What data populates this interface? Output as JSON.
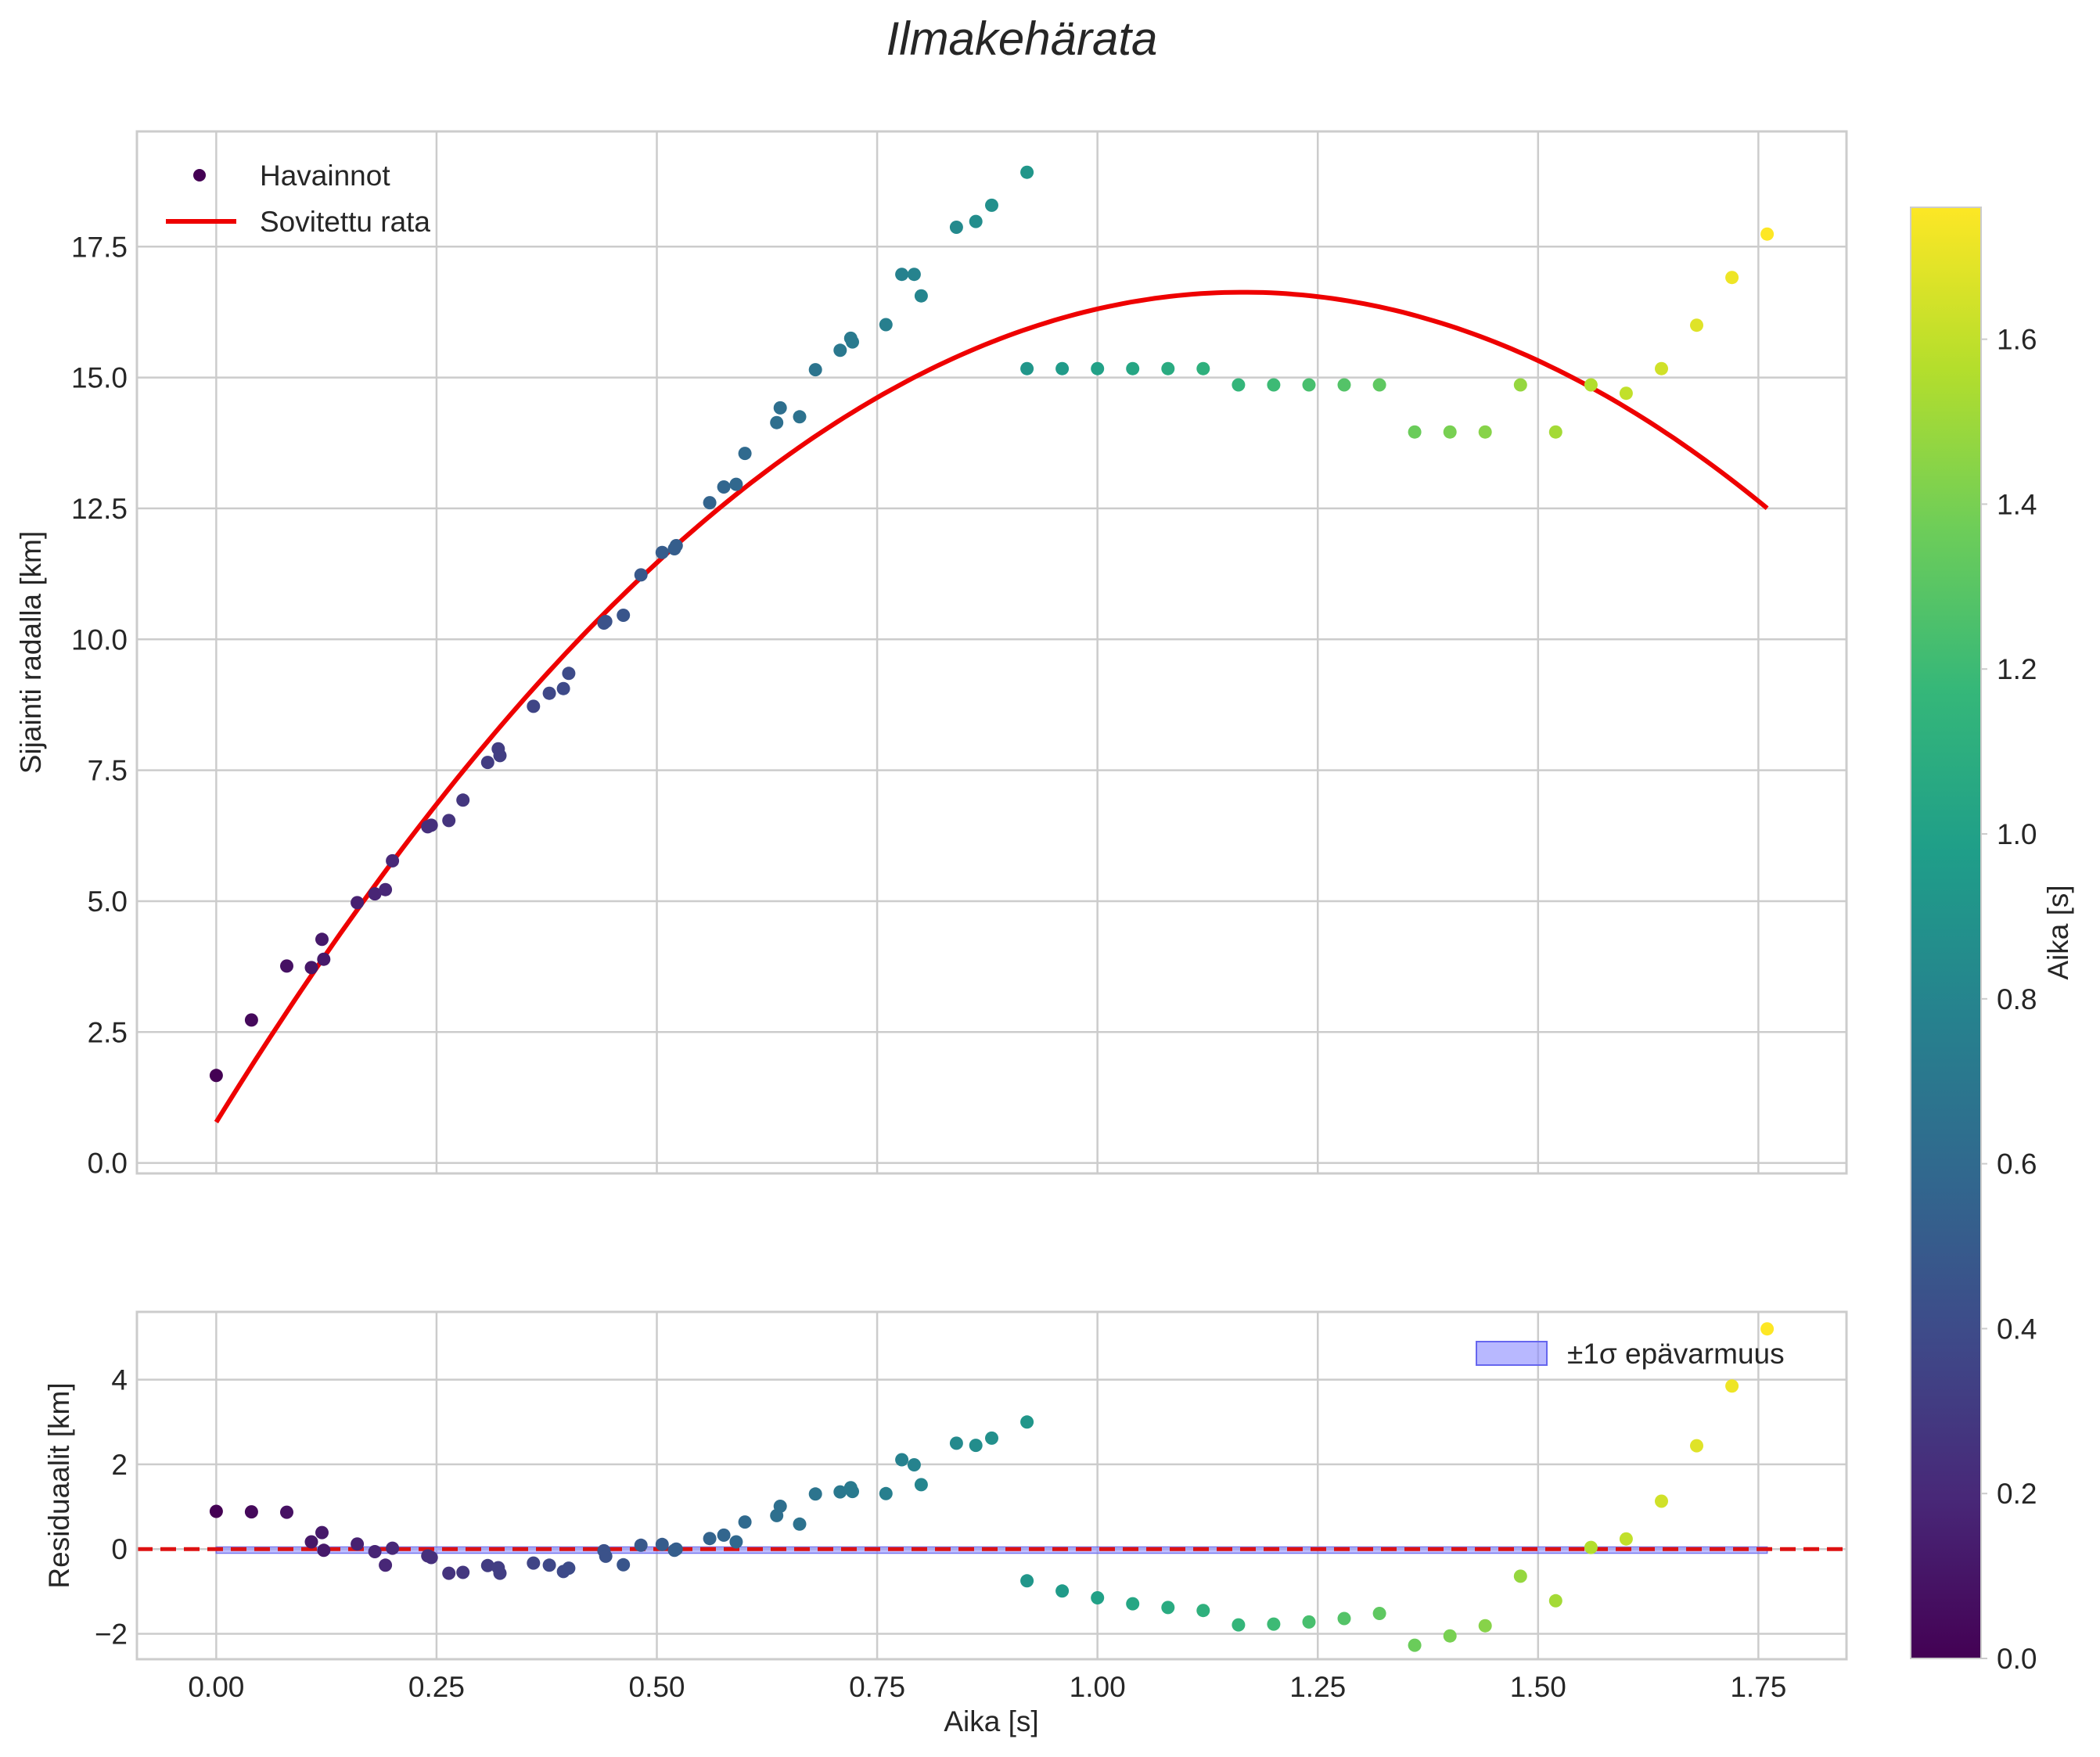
{
  "chart_data": {
    "type": "scatter",
    "title": "Ilmakehärata",
    "top_panel": {
      "ylabel": "Sijainti radalla [km]",
      "xlim": [
        -0.09,
        1.85
      ],
      "ylim": [
        -0.2,
        19.7
      ],
      "yticks": [
        0.0,
        2.5,
        5.0,
        7.5,
        10.0,
        12.5,
        15.0,
        17.5
      ],
      "ytick_labels": [
        "0.0",
        "2.5",
        "5.0",
        "7.5",
        "10.0",
        "12.5",
        "15.0",
        "17.5"
      ],
      "grid": true,
      "legend": {
        "location": "upper-left",
        "entries": [
          {
            "label": "Havainnot",
            "kind": "marker"
          },
          {
            "label": "Sovitettu rata",
            "kind": "line",
            "color": "#ee0000"
          }
        ]
      },
      "series": [
        {
          "name": "Havainnot",
          "kind": "scatter",
          "colored_by": "x",
          "points": [
            [
              0.0,
              1.67
            ],
            [
              0.04,
              2.73
            ],
            [
              0.08,
              3.76
            ],
            [
              0.108,
              3.73
            ],
            [
              0.12,
              4.27
            ],
            [
              0.122,
              3.89
            ],
            [
              0.16,
              4.97
            ],
            [
              0.18,
              5.14
            ],
            [
              0.192,
              5.22
            ],
            [
              0.2,
              5.77
            ],
            [
              0.24,
              6.42
            ],
            [
              0.244,
              6.45
            ],
            [
              0.264,
              6.54
            ],
            [
              0.28,
              6.93
            ],
            [
              0.308,
              7.65
            ],
            [
              0.32,
              7.91
            ],
            [
              0.322,
              7.78
            ],
            [
              0.36,
              8.72
            ],
            [
              0.378,
              8.97
            ],
            [
              0.394,
              9.06
            ],
            [
              0.4,
              9.35
            ],
            [
              0.44,
              10.31
            ],
            [
              0.442,
              10.34
            ],
            [
              0.462,
              10.46
            ],
            [
              0.482,
              11.23
            ],
            [
              0.506,
              11.66
            ],
            [
              0.52,
              11.73
            ],
            [
              0.522,
              11.79
            ],
            [
              0.56,
              12.61
            ],
            [
              0.576,
              12.91
            ],
            [
              0.59,
              12.96
            ],
            [
              0.6,
              13.55
            ],
            [
              0.636,
              14.14
            ],
            [
              0.64,
              14.42
            ],
            [
              0.662,
              14.25
            ],
            [
              0.68,
              15.15
            ],
            [
              0.708,
              15.52
            ],
            [
              0.72,
              15.75
            ],
            [
              0.722,
              15.68
            ],
            [
              0.76,
              16.01
            ],
            [
              0.778,
              16.97
            ],
            [
              0.792,
              16.97
            ],
            [
              0.8,
              16.56
            ],
            [
              0.84,
              17.87
            ],
            [
              0.862,
              17.98
            ],
            [
              0.88,
              18.29
            ],
            [
              0.92,
              18.92
            ],
            [
              0.92,
              15.17
            ],
            [
              0.96,
              15.17
            ],
            [
              1.0,
              15.17
            ],
            [
              1.04,
              15.17
            ],
            [
              1.08,
              15.17
            ],
            [
              1.12,
              15.17
            ],
            [
              1.16,
              14.86
            ],
            [
              1.2,
              14.86
            ],
            [
              1.24,
              14.86
            ],
            [
              1.28,
              14.86
            ],
            [
              1.32,
              14.86
            ],
            [
              1.36,
              13.96
            ],
            [
              1.4,
              13.96
            ],
            [
              1.44,
              13.96
            ],
            [
              1.48,
              14.86
            ],
            [
              1.52,
              13.96
            ],
            [
              1.56,
              14.86
            ],
            [
              1.6,
              14.7
            ],
            [
              1.64,
              15.17
            ],
            [
              1.68,
              16.0
            ],
            [
              1.72,
              16.91
            ],
            [
              1.76,
              17.74
            ]
          ]
        },
        {
          "name": "Sovitettu rata",
          "kind": "line",
          "color": "#ee0000",
          "model": "y = a + b*t + c*t^2",
          "coefficients": {
            "a": 0.78,
            "b": 27.2,
            "c": -11.67
          },
          "x_range": [
            0.0,
            1.76
          ]
        }
      ]
    },
    "bottom_panel": {
      "ylabel": "Residuaalit [km]",
      "xlabel": "Aika [s]",
      "xlim": [
        -0.09,
        1.85
      ],
      "ylim": [
        -2.6,
        5.6
      ],
      "xticks": [
        0.0,
        0.25,
        0.5,
        0.75,
        1.0,
        1.25,
        1.5,
        1.75
      ],
      "xtick_labels": [
        "0.00",
        "0.25",
        "0.50",
        "0.75",
        "1.00",
        "1.25",
        "1.50",
        "1.75"
      ],
      "yticks": [
        -2,
        0,
        2,
        4
      ],
      "ytick_labels": [
        "−2",
        "0",
        "2",
        "4"
      ],
      "grid": true,
      "legend": {
        "location": "upper-right",
        "entries": [
          {
            "label": "±1σ epävarmuus",
            "kind": "band",
            "color": "#8888ff"
          }
        ]
      },
      "zero_line": {
        "y": 0,
        "style": "dashed",
        "color": "#dd1111"
      },
      "uncertainty_band": {
        "half_width": 0.05
      },
      "residuals_colored_by": "x",
      "residuals": [
        [
          0.0,
          0.89
        ],
        [
          0.04,
          0.88
        ],
        [
          0.08,
          0.87
        ],
        [
          0.108,
          0.17
        ],
        [
          0.12,
          0.39
        ],
        [
          0.122,
          -0.03
        ],
        [
          0.16,
          0.12
        ],
        [
          0.18,
          -0.06
        ],
        [
          0.192,
          -0.38
        ],
        [
          0.2,
          0.02
        ],
        [
          0.24,
          -0.16
        ],
        [
          0.244,
          -0.2
        ],
        [
          0.264,
          -0.57
        ],
        [
          0.28,
          -0.55
        ],
        [
          0.308,
          -0.39
        ],
        [
          0.32,
          -0.44
        ],
        [
          0.322,
          -0.57
        ],
        [
          0.36,
          -0.33
        ],
        [
          0.378,
          -0.38
        ],
        [
          0.394,
          -0.53
        ],
        [
          0.4,
          -0.45
        ],
        [
          0.44,
          -0.04
        ],
        [
          0.442,
          -0.17
        ],
        [
          0.462,
          -0.37
        ],
        [
          0.482,
          0.09
        ],
        [
          0.506,
          0.11
        ],
        [
          0.52,
          -0.03
        ],
        [
          0.522,
          0.0
        ],
        [
          0.56,
          0.25
        ],
        [
          0.576,
          0.33
        ],
        [
          0.59,
          0.17
        ],
        [
          0.6,
          0.64
        ],
        [
          0.636,
          0.79
        ],
        [
          0.64,
          1.01
        ],
        [
          0.662,
          0.59
        ],
        [
          0.68,
          1.3
        ],
        [
          0.708,
          1.35
        ],
        [
          0.72,
          1.45
        ],
        [
          0.722,
          1.36
        ],
        [
          0.76,
          1.31
        ],
        [
          0.778,
          2.11
        ],
        [
          0.792,
          1.99
        ],
        [
          0.8,
          1.52
        ],
        [
          0.84,
          2.5
        ],
        [
          0.862,
          2.45
        ],
        [
          0.88,
          2.62
        ],
        [
          0.92,
          3.0
        ],
        [
          0.92,
          -0.75
        ],
        [
          0.96,
          -0.99
        ],
        [
          1.0,
          -1.15
        ],
        [
          1.04,
          -1.29
        ],
        [
          1.08,
          -1.38
        ],
        [
          1.12,
          -1.45
        ],
        [
          1.16,
          -1.79
        ],
        [
          1.2,
          -1.77
        ],
        [
          1.24,
          -1.72
        ],
        [
          1.28,
          -1.64
        ],
        [
          1.32,
          -1.52
        ],
        [
          1.36,
          -2.27
        ],
        [
          1.4,
          -2.05
        ],
        [
          1.44,
          -1.81
        ],
        [
          1.48,
          -0.64
        ],
        [
          1.52,
          -1.22
        ],
        [
          1.56,
          0.04
        ],
        [
          1.6,
          0.24
        ],
        [
          1.64,
          1.13
        ],
        [
          1.68,
          2.44
        ],
        [
          1.72,
          3.85
        ],
        [
          1.76,
          5.2
        ]
      ]
    },
    "colorbar": {
      "label": "Aika [s]",
      "colormap": "viridis",
      "range": [
        0.0,
        1.76
      ],
      "ticks": [
        0.0,
        0.2,
        0.4,
        0.6,
        0.8,
        1.0,
        1.2,
        1.4,
        1.6
      ],
      "tick_labels": [
        "0.0",
        "0.2",
        "0.4",
        "0.6",
        "0.8",
        "1.0",
        "1.2",
        "1.4",
        "1.6"
      ]
    }
  }
}
